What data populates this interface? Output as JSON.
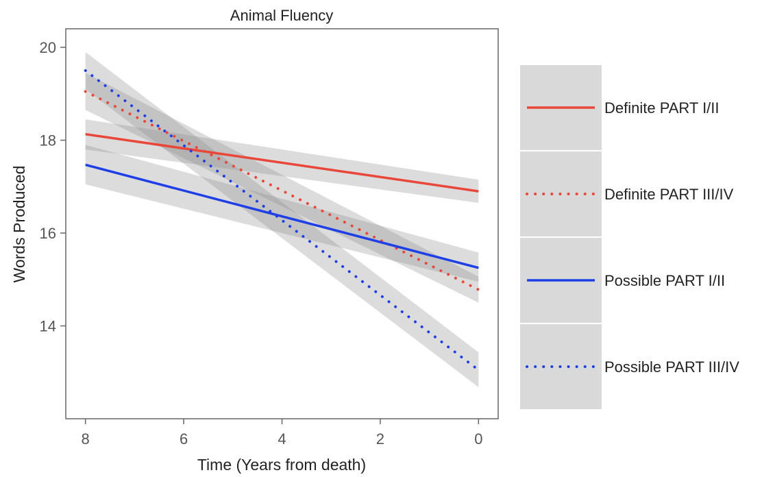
{
  "chart_data": {
    "type": "line",
    "title": "Animal Fluency",
    "xlabel": "Time (Years from death)",
    "ylabel": "Words Produced",
    "xlim": [
      8.4,
      -0.4
    ],
    "ylim": [
      12.0,
      20.4
    ],
    "x_reversed": true,
    "xticks": [
      8,
      6,
      4,
      2,
      0
    ],
    "xtick_labels": [
      "8",
      "6",
      "4",
      "2",
      "0"
    ],
    "yticks": [
      20,
      18,
      16,
      14
    ],
    "ytick_labels": [
      "20",
      "18",
      "16",
      "14"
    ],
    "grid": false,
    "legend_position": "right",
    "series": [
      {
        "name": "Definite PART I/II",
        "color": "#e8473a",
        "dash": "solid",
        "x": [
          8,
          0
        ],
        "y": [
          18.13,
          16.9
        ],
        "ci_low": [
          17.8,
          16.65
        ],
        "ci_high": [
          18.45,
          17.15
        ]
      },
      {
        "name": "Definite PART III/IV",
        "color": "#e8473a",
        "dash": "dotted",
        "x": [
          8,
          0
        ],
        "y": [
          19.05,
          14.78
        ],
        "ci_low": [
          18.65,
          14.5
        ],
        "ci_high": [
          19.45,
          15.06
        ]
      },
      {
        "name": "Possible PART I/II",
        "color": "#1f3fe6",
        "dash": "solid",
        "x": [
          8,
          0
        ],
        "y": [
          17.47,
          15.25
        ],
        "ci_low": [
          17.05,
          14.95
        ],
        "ci_high": [
          17.9,
          15.58
        ]
      },
      {
        "name": "Possible PART III/IV",
        "color": "#1f3fe6",
        "dash": "dotted",
        "x": [
          8,
          0
        ],
        "y": [
          19.5,
          13.05
        ],
        "ci_low": [
          19.1,
          12.68
        ],
        "ci_high": [
          19.9,
          13.43
        ]
      }
    ]
  }
}
